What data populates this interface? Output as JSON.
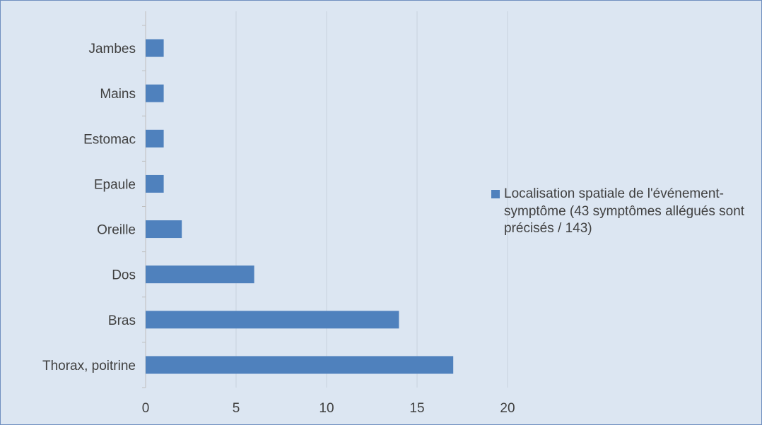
{
  "chart_data": {
    "type": "bar",
    "orientation": "horizontal",
    "categories": [
      "Thorax, poitrine",
      "Bras",
      "Dos",
      "Oreille",
      "Epaule",
      "Estomac",
      "Mains",
      "Jambes"
    ],
    "series": [
      {
        "name": "Localisation spatiale de l'événement-symptôme (43 symptômes allégués sont précisés / 143)",
        "values": [
          17,
          14,
          6,
          2,
          1,
          1,
          1,
          1
        ],
        "color": "#4f81bd"
      }
    ],
    "xlim": [
      0,
      20
    ],
    "xticks": [
      "0",
      "5",
      "10",
      "15",
      "20"
    ],
    "grid": "vertical",
    "legend_position": "right",
    "background": "#dce6f2"
  }
}
